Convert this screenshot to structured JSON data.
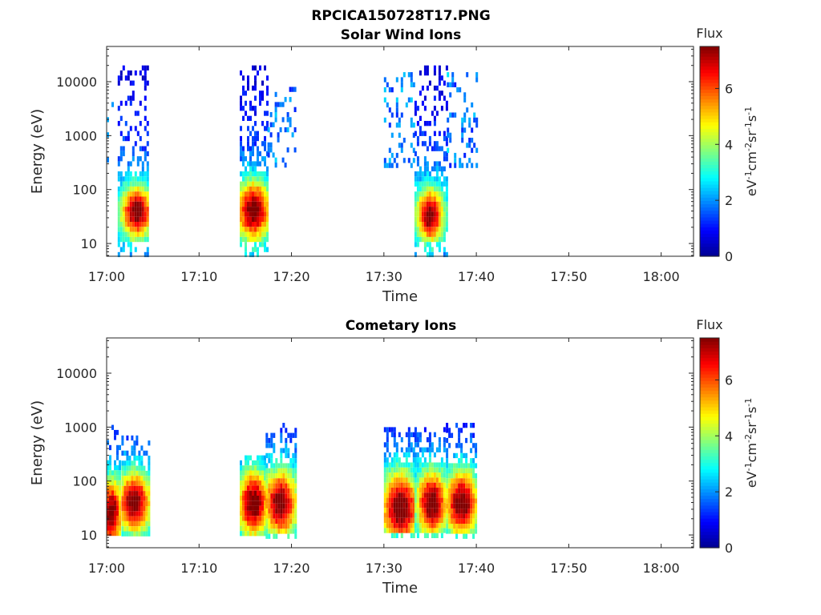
{
  "figure_title": "RPCICA150728T17.PNG",
  "colormap": [
    "#00008f",
    "#0000ff",
    "#0080ff",
    "#00ffff",
    "#80ff80",
    "#ffff00",
    "#ff8000",
    "#ff0000",
    "#800000"
  ],
  "chart_data": [
    {
      "type": "heatmap",
      "title": "Solar Wind Ions",
      "xlabel": "Time",
      "ylabel": "Energy (eV)",
      "y_scale": "log",
      "x_ticks": [
        "17:00",
        "17:10",
        "17:20",
        "17:30",
        "17:40",
        "17:50",
        "18:00"
      ],
      "y_ticks": [
        "10",
        "100",
        "1000",
        "10000"
      ],
      "colorbar": {
        "title": "Flux",
        "unit": "eV⁻¹cm⁻²sr⁻¹s⁻¹",
        "ticks": [
          "0",
          "2",
          "4",
          "6"
        ],
        "range": [
          0,
          7.5
        ]
      },
      "xlim_minutes": [
        0,
        63.5
      ],
      "ylim_ev": [
        5.8,
        45000
      ],
      "blobs": [
        {
          "t_start": 0.0,
          "t_end": 0.6,
          "e_min": 300,
          "e_max": 8000,
          "density": 0.2,
          "core": null
        },
        {
          "t_start": 1.2,
          "t_end": 4.5,
          "e_min": 6,
          "e_max": 20000,
          "density": 0.55,
          "core": {
            "t": 3.3,
            "e": 38,
            "dt": 1.2,
            "de_dec": 0.35
          }
        },
        {
          "t_start": 14.4,
          "t_end": 17.4,
          "e_min": 6,
          "e_max": 20000,
          "density": 0.6,
          "core": {
            "t": 15.9,
            "e": 40,
            "dt": 1.3,
            "de_dec": 0.4
          }
        },
        {
          "t_start": 17.4,
          "t_end": 20.4,
          "e_min": 300,
          "e_max": 8000,
          "density": 0.25,
          "core": null
        },
        {
          "t_start": 30.0,
          "t_end": 33.2,
          "e_min": 300,
          "e_max": 15000,
          "density": 0.25,
          "core": null
        },
        {
          "t_start": 33.3,
          "t_end": 36.8,
          "e_min": 6,
          "e_max": 20000,
          "density": 0.55,
          "core": {
            "t": 35.0,
            "e": 32,
            "dt": 1.0,
            "de_dec": 0.35
          }
        },
        {
          "t_start": 36.8,
          "t_end": 40.0,
          "e_min": 300,
          "e_max": 15000,
          "density": 0.25,
          "core": null
        }
      ]
    },
    {
      "type": "heatmap",
      "title": "Cometary Ions",
      "xlabel": "Time",
      "ylabel": "Energy (eV)",
      "y_scale": "log",
      "x_ticks": [
        "17:00",
        "17:10",
        "17:20",
        "17:30",
        "17:40",
        "17:50",
        "18:00"
      ],
      "y_ticks": [
        "10",
        "100",
        "1000",
        "10000"
      ],
      "colorbar": {
        "title": "Flux",
        "unit": "eV⁻¹cm⁻²sr⁻¹s⁻¹",
        "ticks": [
          "0",
          "2",
          "4",
          "6"
        ],
        "range": [
          0,
          7.5
        ]
      },
      "xlim_minutes": [
        0,
        63.5
      ],
      "ylim_ev": [
        5.8,
        45000
      ],
      "blobs": [
        {
          "t_start": 0.0,
          "t_end": 1.6,
          "e_min": 10,
          "e_max": 1100,
          "density": 0.5,
          "core": {
            "t": 0.5,
            "e": 25,
            "dt": 0.9,
            "de_dec": 0.45
          }
        },
        {
          "t_start": 1.6,
          "t_end": 4.6,
          "e_min": 10,
          "e_max": 700,
          "density": 0.55,
          "core": {
            "t": 3.0,
            "e": 40,
            "dt": 1.3,
            "de_dec": 0.4
          }
        },
        {
          "t_start": 14.4,
          "t_end": 17.2,
          "e_min": 10,
          "e_max": 300,
          "density": 0.6,
          "core": {
            "t": 15.9,
            "e": 38,
            "dt": 1.2,
            "de_dec": 0.45
          }
        },
        {
          "t_start": 17.2,
          "t_end": 20.4,
          "e_min": 10,
          "e_max": 1200,
          "density": 0.6,
          "core": {
            "t": 18.8,
            "e": 38,
            "dt": 1.3,
            "de_dec": 0.45
          }
        },
        {
          "t_start": 30.0,
          "t_end": 33.3,
          "e_min": 10,
          "e_max": 1000,
          "density": 0.6,
          "core": {
            "t": 31.8,
            "e": 30,
            "dt": 1.5,
            "de_dec": 0.5
          }
        },
        {
          "t_start": 33.3,
          "t_end": 36.7,
          "e_min": 10,
          "e_max": 1000,
          "density": 0.55,
          "core": {
            "t": 35.2,
            "e": 38,
            "dt": 1.2,
            "de_dec": 0.45
          }
        },
        {
          "t_start": 36.7,
          "t_end": 40.0,
          "e_min": 10,
          "e_max": 1200,
          "density": 0.55,
          "core": {
            "t": 38.4,
            "e": 38,
            "dt": 1.3,
            "de_dec": 0.45
          }
        }
      ]
    }
  ]
}
